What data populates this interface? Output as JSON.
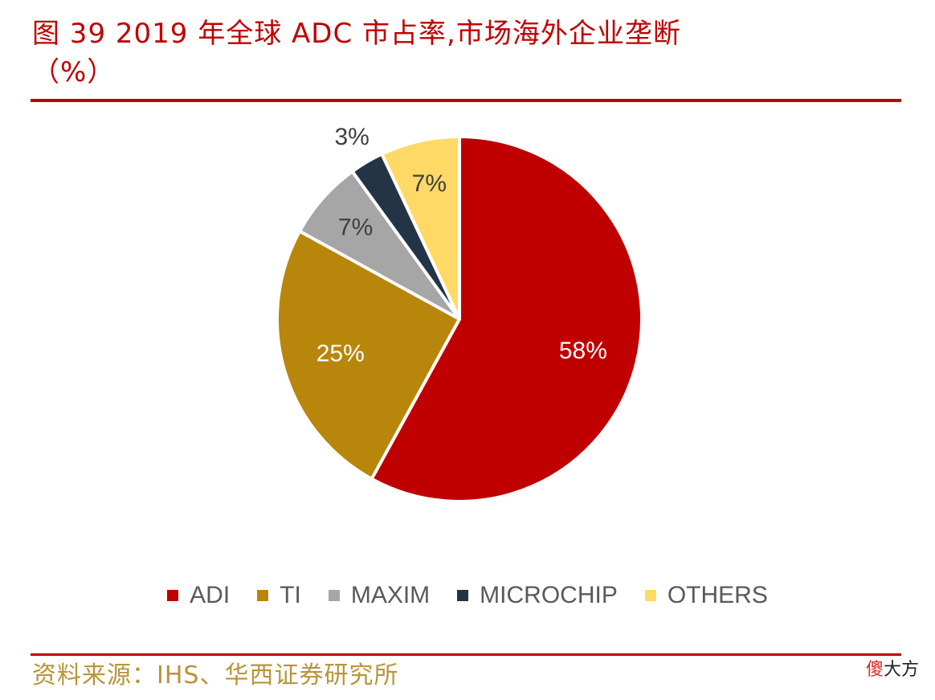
{
  "header": {
    "title_line1": "图 39 2019 年全球 ADC 市占率,市场海外企业垄断",
    "title_line2": "（%）"
  },
  "footer": {
    "source": "资料来源：IHS、华西证券研究所",
    "watermark_accent": "傻",
    "watermark_rest": "大方"
  },
  "chart_data": {
    "type": "pie",
    "title": "",
    "categories": [
      "ADI",
      "TI",
      "MAXIM",
      "MICROCHIP",
      "OTHERS"
    ],
    "values": [
      58,
      25,
      7,
      3,
      7
    ],
    "labels": [
      "58%",
      "25%",
      "7%",
      "3%",
      "7%"
    ],
    "colors": [
      "#c00000",
      "#b8860b",
      "#a6a6a6",
      "#243447",
      "#ffd966"
    ],
    "label_colors": [
      "#ffffff",
      "#ffffff",
      "#404040",
      "#404040",
      "#404040"
    ],
    "label_placement": [
      "inside",
      "inside",
      "inside",
      "outside",
      "inside"
    ],
    "start_angle_deg": 0,
    "direction": "clockwise",
    "legend_position": "bottom"
  }
}
